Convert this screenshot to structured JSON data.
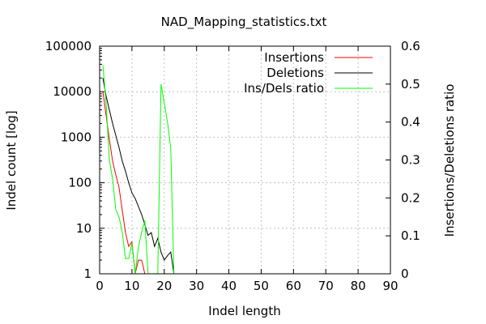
{
  "chart_data": {
    "type": "line",
    "title": "NAD_Mapping_statistics.txt",
    "xlabel": "Indel length",
    "ylabel": "Indel count [log]",
    "y2label": "Insertions/Deletions ratio",
    "xlim": [
      0,
      90
    ],
    "ylim": [
      1,
      100000
    ],
    "y2lim": [
      0,
      0.6
    ],
    "yscale": "log",
    "grid": true,
    "legend_position": "top-right",
    "x_ticks": [
      "0",
      "10",
      "20",
      "30",
      "40",
      "50",
      "60",
      "70",
      "80",
      "90"
    ],
    "y_ticks": [
      "1",
      "10",
      "100",
      "1000",
      "10000",
      "100000"
    ],
    "y2_ticks": [
      "0",
      "0.1",
      "0.2",
      "0.3",
      "0.4",
      "0.5",
      "0.6"
    ],
    "series": [
      {
        "name": "Insertions",
        "axis": "left",
        "color": "#ff0000",
        "x": [
          1,
          2,
          3,
          4,
          5,
          6,
          7,
          8,
          9,
          10,
          11,
          12,
          13,
          14
        ],
        "y": [
          10000,
          3000,
          900,
          300,
          150,
          80,
          25,
          8,
          4,
          5,
          1,
          2,
          2,
          1
        ]
      },
      {
        "name": "Deletions",
        "axis": "left",
        "color": "#000000",
        "x": [
          1,
          2,
          3,
          4,
          5,
          6,
          7,
          8,
          9,
          10,
          11,
          12,
          13,
          14,
          15,
          16,
          17,
          18,
          19,
          20,
          21,
          22,
          23
        ],
        "y": [
          20000,
          8000,
          4000,
          2000,
          1100,
          600,
          300,
          180,
          100,
          60,
          45,
          30,
          20,
          12,
          7,
          8,
          4,
          6,
          3,
          2,
          2.5,
          3,
          1
        ]
      },
      {
        "name": "Ins/Dels ratio",
        "axis": "right",
        "color": "#00ff00",
        "x": [
          1,
          2,
          3,
          4,
          5,
          6,
          7,
          8,
          9,
          10,
          11,
          12,
          13,
          14,
          15,
          16,
          17,
          18,
          19,
          20,
          21,
          22,
          23
        ],
        "y": [
          0.55,
          0.45,
          0.3,
          0.25,
          0.17,
          0.15,
          0.11,
          0.04,
          0.04,
          0.08,
          0.0,
          0.07,
          0.11,
          0.14,
          0.0,
          0.0,
          0.0,
          0.0,
          0.5,
          0.45,
          0.4,
          0.33,
          0.0
        ]
      }
    ]
  }
}
